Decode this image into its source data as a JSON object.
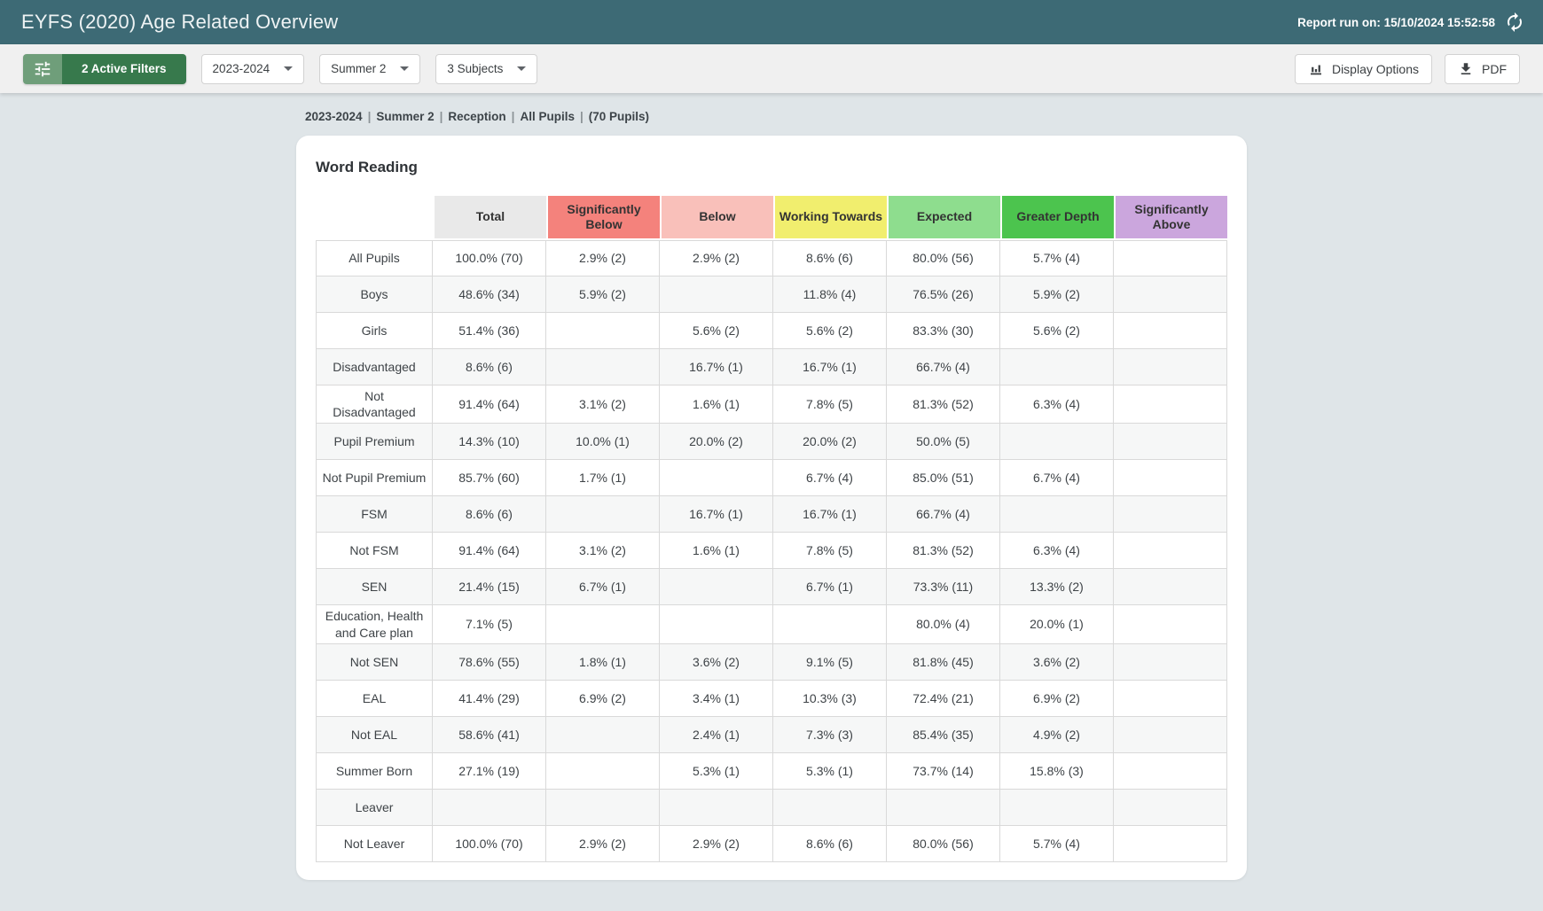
{
  "topbar": {
    "title": "EYFS (2020) Age Related Overview",
    "report_run_label": "Report run on: 15/10/2024 15:52:58"
  },
  "toolbar": {
    "active_filters": "2 Active Filters",
    "dropdowns": [
      "2023-2024",
      "Summer 2",
      "3 Subjects"
    ],
    "display_options": "Display Options",
    "pdf": "PDF"
  },
  "breadcrumb": {
    "parts": [
      "2023-2024",
      "Summer 2",
      "Reception",
      "All Pupils",
      "(70 Pupils)"
    ],
    "separator": "|"
  },
  "card": {
    "title": "Word Reading"
  },
  "table": {
    "columns": [
      {
        "label": "",
        "color": "transparent"
      },
      {
        "label": "Total",
        "color": "#e9e9e9"
      },
      {
        "label": "Significantly Below",
        "color": "#f4827c"
      },
      {
        "label": "Below",
        "color": "#f9c0ba"
      },
      {
        "label": "Working Towards",
        "color": "#f1ee6e"
      },
      {
        "label": "Expected",
        "color": "#8edd8e"
      },
      {
        "label": "Greater Depth",
        "color": "#4cc44e"
      },
      {
        "label": "Significantly Above",
        "color": "#cba6dd"
      }
    ],
    "rows": [
      {
        "label": "All Pupils",
        "values": [
          "100.0% (70)",
          "2.9% (2)",
          "2.9% (2)",
          "8.6% (6)",
          "80.0% (56)",
          "5.7% (4)",
          ""
        ]
      },
      {
        "label": "Boys",
        "values": [
          "48.6% (34)",
          "5.9% (2)",
          "",
          "11.8% (4)",
          "76.5% (26)",
          "5.9% (2)",
          ""
        ]
      },
      {
        "label": "Girls",
        "values": [
          "51.4% (36)",
          "",
          "5.6% (2)",
          "5.6% (2)",
          "83.3% (30)",
          "5.6% (2)",
          ""
        ]
      },
      {
        "label": "Disadvantaged",
        "values": [
          "8.6% (6)",
          "",
          "16.7% (1)",
          "16.7% (1)",
          "66.7% (4)",
          "",
          ""
        ]
      },
      {
        "label": "Not Disadvantaged",
        "values": [
          "91.4% (64)",
          "3.1% (2)",
          "1.6% (1)",
          "7.8% (5)",
          "81.3% (52)",
          "6.3% (4)",
          ""
        ]
      },
      {
        "label": "Pupil Premium",
        "values": [
          "14.3% (10)",
          "10.0% (1)",
          "20.0% (2)",
          "20.0% (2)",
          "50.0% (5)",
          "",
          ""
        ]
      },
      {
        "label": "Not Pupil Premium",
        "values": [
          "85.7% (60)",
          "1.7% (1)",
          "",
          "6.7% (4)",
          "85.0% (51)",
          "6.7% (4)",
          ""
        ]
      },
      {
        "label": "FSM",
        "values": [
          "8.6% (6)",
          "",
          "16.7% (1)",
          "16.7% (1)",
          "66.7% (4)",
          "",
          ""
        ]
      },
      {
        "label": "Not FSM",
        "values": [
          "91.4% (64)",
          "3.1% (2)",
          "1.6% (1)",
          "7.8% (5)",
          "81.3% (52)",
          "6.3% (4)",
          ""
        ]
      },
      {
        "label": "SEN",
        "values": [
          "21.4% (15)",
          "6.7% (1)",
          "",
          "6.7% (1)",
          "73.3% (11)",
          "13.3% (2)",
          ""
        ]
      },
      {
        "label": "Education, Health and Care plan",
        "values": [
          "7.1% (5)",
          "",
          "",
          "",
          "80.0% (4)",
          "20.0% (1)",
          ""
        ]
      },
      {
        "label": "Not SEN",
        "values": [
          "78.6% (55)",
          "1.8% (1)",
          "3.6% (2)",
          "9.1% (5)",
          "81.8% (45)",
          "3.6% (2)",
          ""
        ]
      },
      {
        "label": "EAL",
        "values": [
          "41.4% (29)",
          "6.9% (2)",
          "3.4% (1)",
          "10.3% (3)",
          "72.4% (21)",
          "6.9% (2)",
          ""
        ]
      },
      {
        "label": "Not EAL",
        "values": [
          "58.6% (41)",
          "",
          "2.4% (1)",
          "7.3% (3)",
          "85.4% (35)",
          "4.9% (2)",
          ""
        ]
      },
      {
        "label": "Summer Born",
        "values": [
          "27.1% (19)",
          "",
          "5.3% (1)",
          "5.3% (1)",
          "73.7% (14)",
          "15.8% (3)",
          ""
        ]
      },
      {
        "label": "Leaver",
        "values": [
          "",
          "",
          "",
          "",
          "",
          "",
          ""
        ]
      },
      {
        "label": "Not Leaver",
        "values": [
          "100.0% (70)",
          "2.9% (2)",
          "2.9% (2)",
          "8.6% (6)",
          "80.0% (56)",
          "5.7% (4)",
          ""
        ]
      }
    ]
  },
  "colors": {
    "topbar_bg": "#3d6a75",
    "toolbar_bg": "#f0f0f0",
    "page_bg": "#dfe5e8",
    "filter_btn_icon_bg": "#6f9e7a",
    "filter_btn_label_bg": "#37794c",
    "table_border": "#d9d9d9",
    "row_stripe": "#f6f7f7"
  }
}
